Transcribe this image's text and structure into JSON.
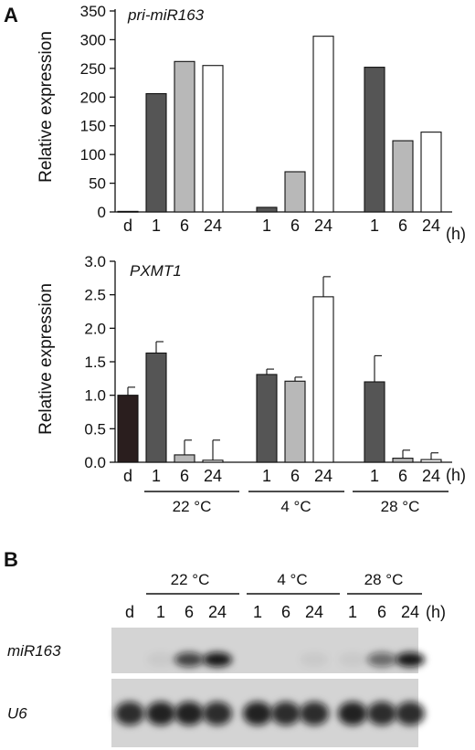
{
  "panels": {
    "a": "A",
    "b": "B"
  },
  "hours_unit": "(h)",
  "temperature_groups": [
    "22 °C",
    "4 °C",
    "28 °C"
  ],
  "colors": {
    "dark_gray_bar": "#555555",
    "light_gray_bar": "#b8b8b8",
    "white_bar": "#ffffff",
    "black_bar": "#2a1e1e",
    "blot_background": "#d4d4d4"
  },
  "chart_data": [
    {
      "type": "bar",
      "title": "pri-miR163",
      "ylabel": "Relative expression",
      "ylim": [
        0,
        350
      ],
      "yticks": [
        0,
        50,
        100,
        150,
        200,
        250,
        300,
        350
      ],
      "categories": [
        "d",
        "1",
        "6",
        "24",
        "1",
        "6",
        "24",
        "1",
        "6",
        "24"
      ],
      "groups": [
        "",
        "22 °C",
        "22 °C",
        "22 °C",
        "4 °C",
        "4 °C",
        "4 °C",
        "28 °C",
        "28 °C",
        "28 °C"
      ],
      "values": [
        1,
        206,
        262,
        255,
        8,
        70,
        306,
        252,
        124,
        139
      ],
      "bar_colors": [
        "#2a1e1e",
        "#555555",
        "#b8b8b8",
        "#ffffff",
        "#555555",
        "#b8b8b8",
        "#ffffff",
        "#555555",
        "#b8b8b8",
        "#ffffff"
      ]
    },
    {
      "type": "bar",
      "title": "PXMT1",
      "ylabel": "Relative expression",
      "ylim": [
        0,
        3.0
      ],
      "yticks": [
        "0.0",
        "0.5",
        "1.0",
        "1.5",
        "2.0",
        "2.5",
        "3.0"
      ],
      "categories": [
        "d",
        "1",
        "6",
        "24",
        "1",
        "6",
        "24",
        "1",
        "6",
        "24"
      ],
      "groups": [
        "",
        "22 °C",
        "22 °C",
        "22 °C",
        "4 °C",
        "4 °C",
        "4 °C",
        "28 °C",
        "28 °C",
        "28 °C"
      ],
      "values": [
        1.0,
        1.63,
        0.11,
        0.03,
        1.31,
        1.21,
        2.47,
        1.2,
        0.06,
        0.04
      ],
      "errors": [
        0.12,
        0.17,
        0.22,
        0.3,
        0.08,
        0.06,
        0.3,
        0.39,
        0.12,
        0.1
      ],
      "bar_colors": [
        "#2a1e1e",
        "#555555",
        "#b8b8b8",
        "#ffffff",
        "#555555",
        "#b8b8b8",
        "#ffffff",
        "#555555",
        "#b8b8b8",
        "#ffffff"
      ]
    }
  ],
  "blot": {
    "lane_labels": [
      "d",
      "1",
      "6",
      "24",
      "1",
      "6",
      "24",
      "1",
      "6",
      "24"
    ],
    "rows": [
      {
        "label": "miR163",
        "intensities": [
          0.0,
          0.05,
          0.75,
          0.95,
          0.0,
          0.0,
          0.05,
          0.05,
          0.55,
          0.95
        ]
      },
      {
        "label": "U6",
        "intensities": [
          0.85,
          0.9,
          0.9,
          0.85,
          0.9,
          0.85,
          0.85,
          0.9,
          0.85,
          0.85
        ]
      }
    ]
  }
}
